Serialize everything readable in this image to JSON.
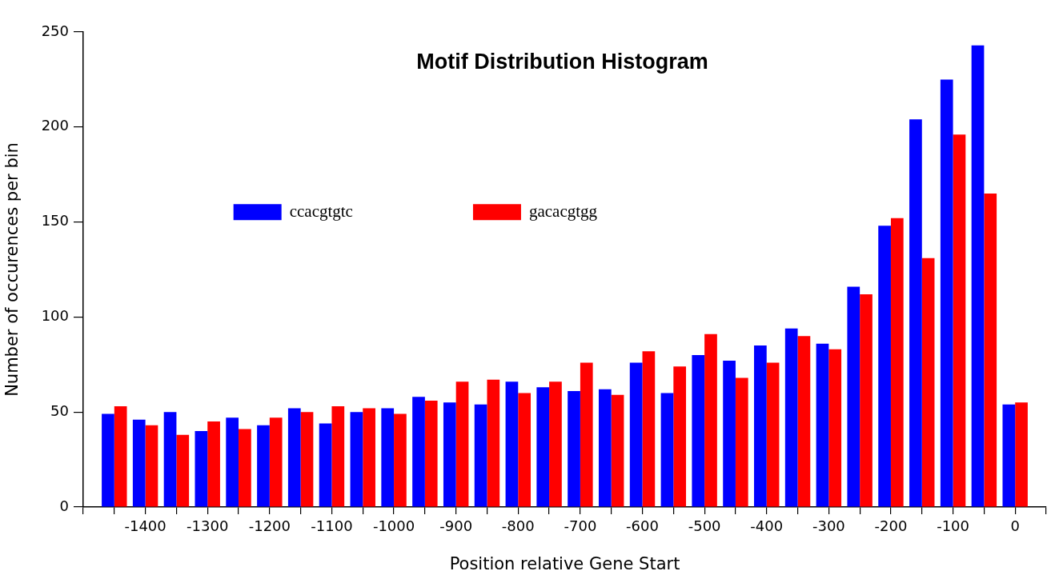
{
  "chart_data": {
    "type": "bar",
    "title": "Motif Distribution Histogram",
    "xlabel": "Position relative Gene Start",
    "ylabel": "Number of occurences per bin",
    "x": [
      -1450,
      -1400,
      -1350,
      -1300,
      -1250,
      -1200,
      -1150,
      -1100,
      -1050,
      -1000,
      -950,
      -900,
      -850,
      -800,
      -750,
      -700,
      -650,
      -600,
      -550,
      -500,
      -450,
      -400,
      -350,
      -300,
      -250,
      -200,
      -150,
      -100,
      -50,
      0
    ],
    "series": [
      {
        "name": "ccacgtgtc",
        "color": "#0000ff",
        "values": [
          49,
          46,
          50,
          40,
          47,
          43,
          52,
          44,
          50,
          52,
          58,
          55,
          54,
          66,
          63,
          61,
          62,
          76,
          60,
          80,
          77,
          85,
          94,
          86,
          116,
          148,
          204,
          225,
          243,
          54
        ]
      },
      {
        "name": "gacacgtgg",
        "color": "#ff0000",
        "values": [
          53,
          43,
          38,
          45,
          41,
          47,
          50,
          53,
          52,
          49,
          56,
          66,
          67,
          60,
          66,
          76,
          59,
          82,
          74,
          91,
          68,
          76,
          90,
          83,
          112,
          152,
          131,
          196,
          165,
          55
        ]
      }
    ],
    "xlim": [
      -1500,
      50
    ],
    "xticks": [
      {
        "value": -1500,
        "label": null
      },
      {
        "value": -1450,
        "label": null
      },
      -1400,
      {
        "value": -1350,
        "label": null
      },
      -1300,
      {
        "value": -1250,
        "label": null
      },
      -1200,
      {
        "value": -1150,
        "label": null
      },
      -1100,
      {
        "value": -1050,
        "label": null
      },
      -1000,
      {
        "value": -950,
        "label": null
      },
      -900,
      {
        "value": -850,
        "label": null
      },
      -800,
      {
        "value": -750,
        "label": null
      },
      -700,
      {
        "value": -650,
        "label": null
      },
      -600,
      {
        "value": -550,
        "label": null
      },
      -500,
      {
        "value": -450,
        "label": null
      },
      -400,
      {
        "value": -350,
        "label": null
      },
      -300,
      {
        "value": -250,
        "label": null
      },
      -200,
      {
        "value": -150,
        "label": null
      },
      -100,
      {
        "value": -50,
        "label": null
      },
      0,
      {
        "value": 50,
        "label": null
      }
    ],
    "ylim": [
      0,
      250
    ],
    "yticks": [
      0,
      50,
      100,
      150,
      200,
      250
    ],
    "legend": "top left"
  }
}
